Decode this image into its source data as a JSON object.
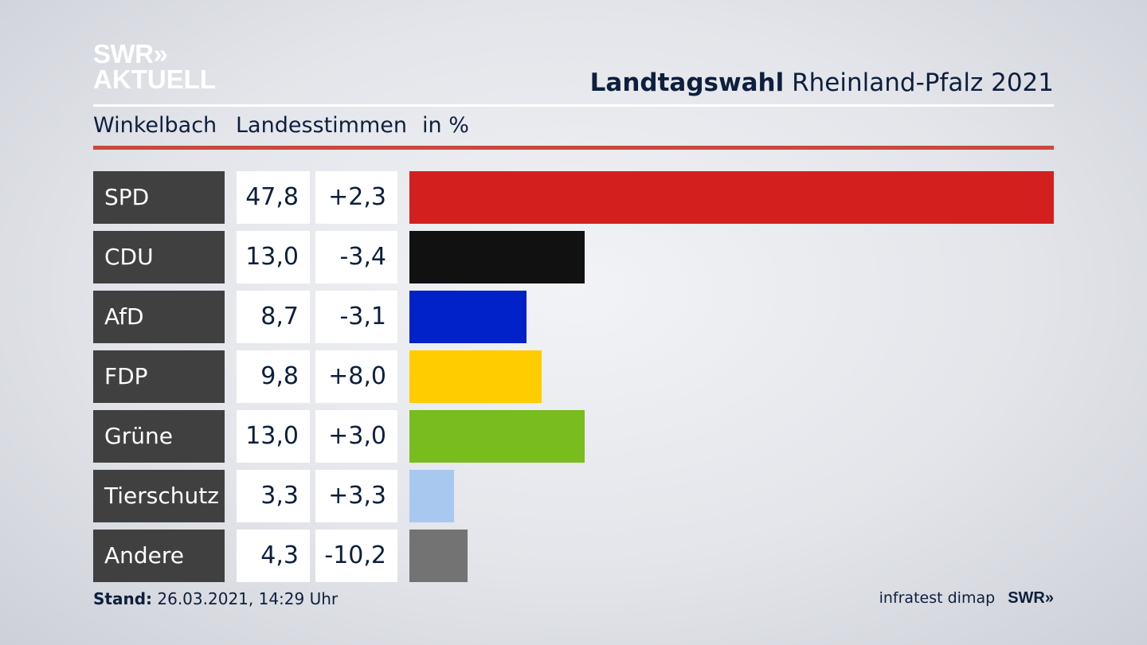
{
  "brand": {
    "logo_line1": "SWR»",
    "logo_line2": "AKTUELL",
    "footer_logo": "SWR»"
  },
  "header": {
    "title_bold": "Landtagswahl",
    "title_rest": "Rheinland-Pfalz 2021",
    "subtitle_place": "Winkelbach",
    "subtitle_measure": "Landesstimmen",
    "subtitle_unit": "in %"
  },
  "footer": {
    "stand_label": "Stand:",
    "stand_value": "26.03.2021, 14:29 Uhr",
    "source": "infratest dimap"
  },
  "colors": {
    "SPD": "#d41f1f",
    "CDU": "#111111",
    "AfD": "#0022c8",
    "FDP": "#ffcc00",
    "Grüne": "#78bc1e",
    "Tierschutz": "#a9c8f0",
    "Andere": "#737373"
  },
  "chart_data": {
    "type": "bar",
    "orientation": "horizontal",
    "unit": "%",
    "categories": [
      "SPD",
      "CDU",
      "AfD",
      "FDP",
      "Grüne",
      "Tierschutz",
      "Andere"
    ],
    "values": [
      47.8,
      13.0,
      8.7,
      9.8,
      13.0,
      3.3,
      4.3
    ],
    "value_labels": [
      "47,8",
      "13,0",
      "8,7",
      "9,8",
      "13,0",
      "3,3",
      "4,3"
    ],
    "diff_labels": [
      "+2,3",
      "-3,4",
      "-3,1",
      "+8,0",
      "+3,0",
      "+3,3",
      "-10,2"
    ],
    "xlim": [
      0,
      47.8
    ],
    "grid": false,
    "legend": "none"
  }
}
